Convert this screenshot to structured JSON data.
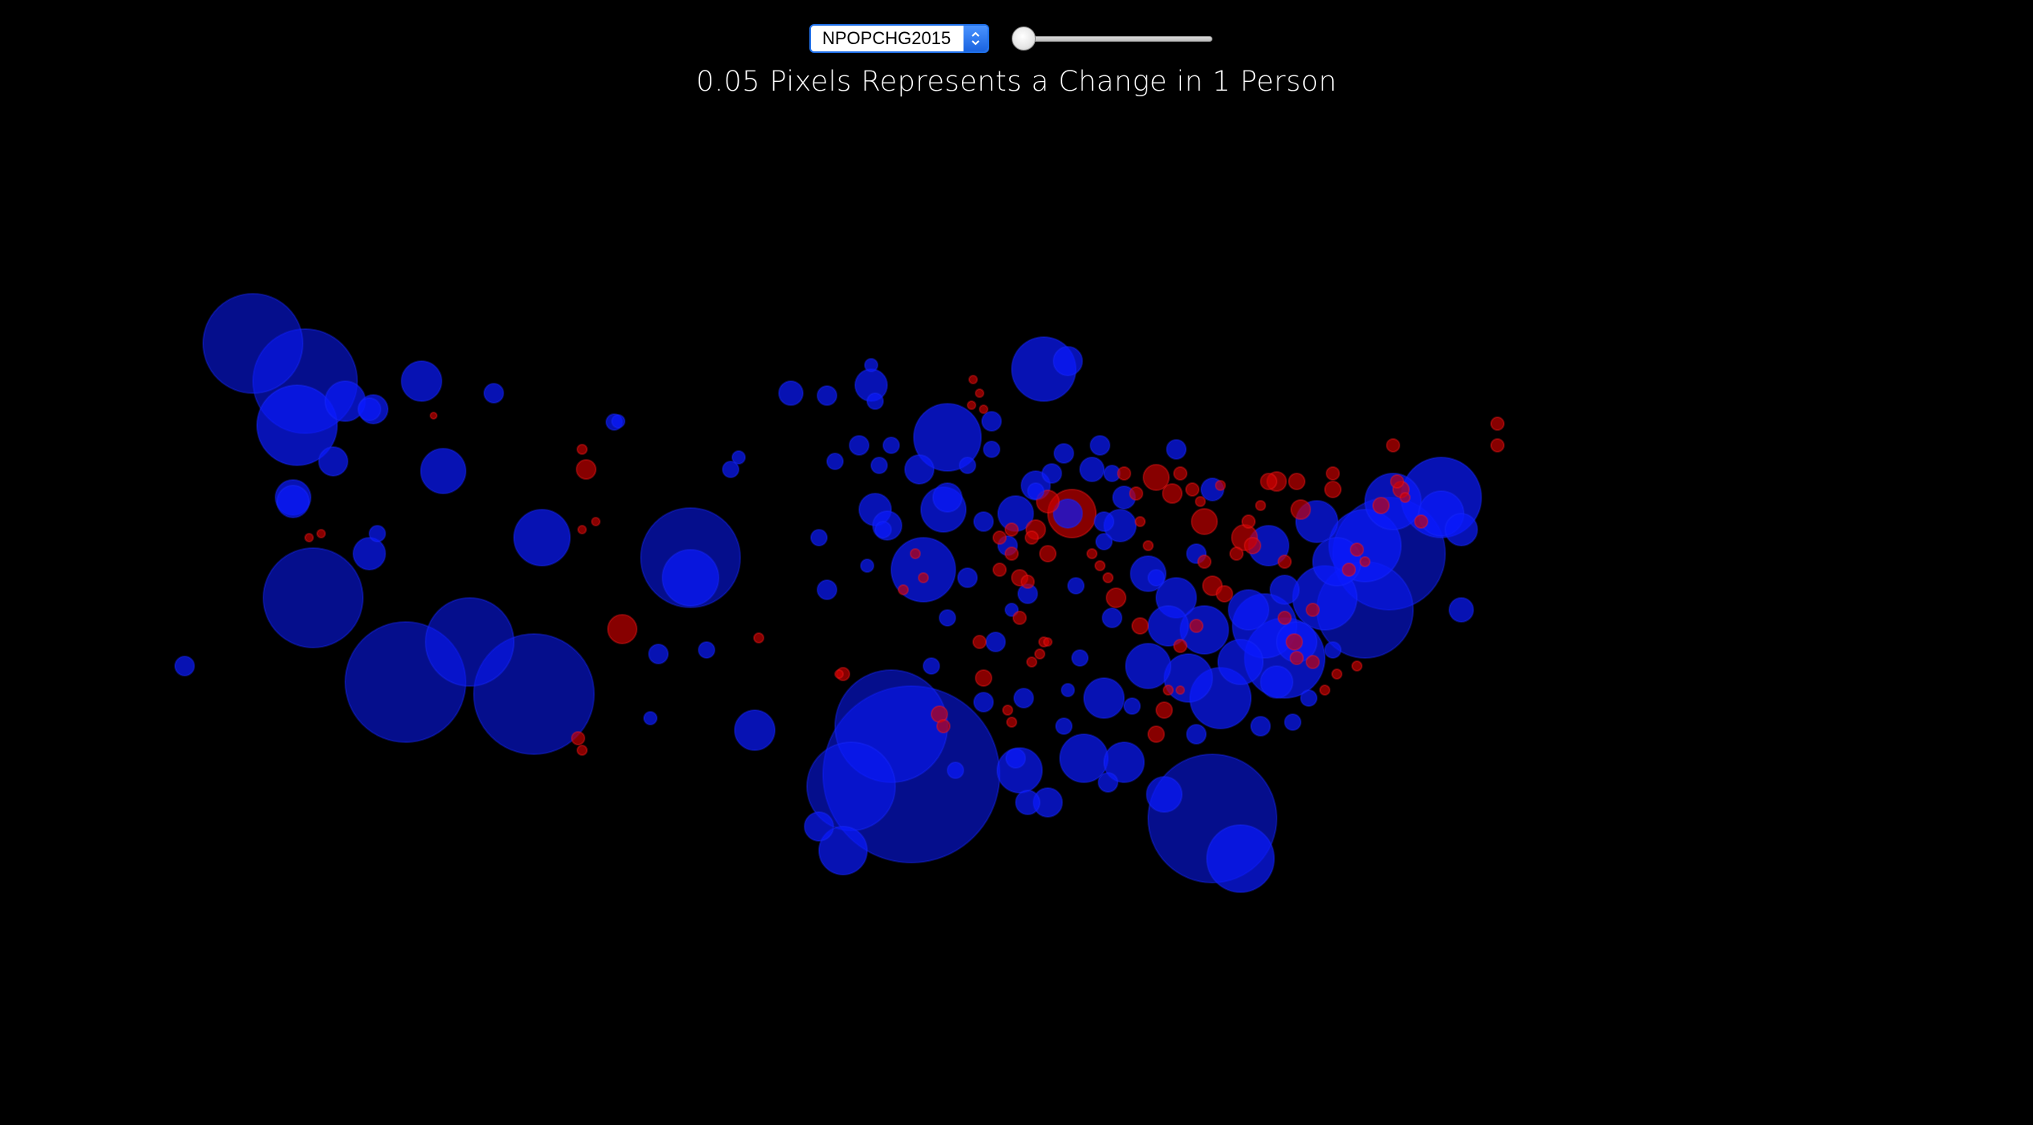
{
  "controls": {
    "variable_select": {
      "selected": "NPOPCHG2015"
    },
    "slider": {
      "value_fraction": 0.0
    }
  },
  "title": "0.05 Pixels Represents a Change in 1 Person",
  "legend_colors": {
    "increase": "#0a1aff",
    "decrease": "#d00000"
  },
  "icons": {
    "select_arrows": "up-down-chevron-icon"
  }
}
